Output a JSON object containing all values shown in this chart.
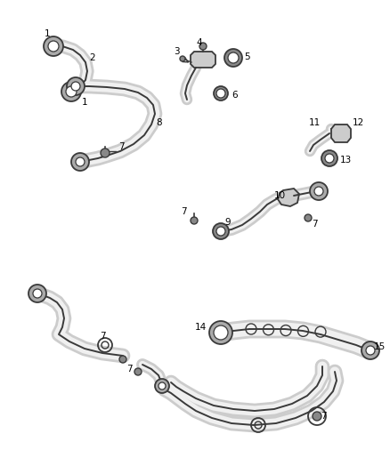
{
  "background_color": "#ffffff",
  "line_color": "#3a3a3a",
  "label_color": "#000000",
  "figsize": [
    4.38,
    5.33
  ],
  "dpi": 100,
  "tube_outer_lw": 6.0,
  "tube_inner_lw": 3.5,
  "tube_outer_color": "#aaaaaa",
  "tube_inner_color": "#ffffff",
  "tube_edge_lw": 1.3,
  "tube_edge_color": "#3a3a3a"
}
